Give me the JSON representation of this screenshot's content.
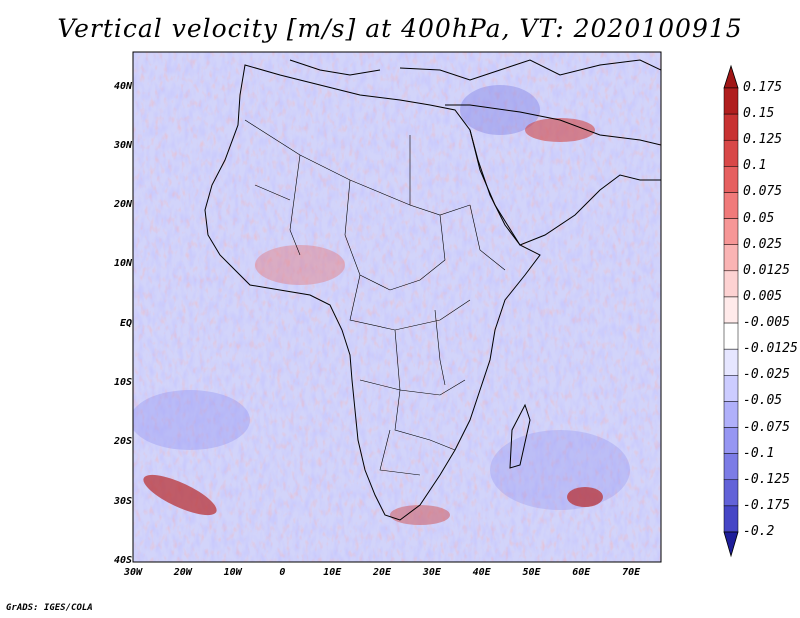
{
  "title": "Vertical velocity [m/s] at 400hPa, VT: 2020100915",
  "footer": "GrADS: IGES/COLA",
  "map": {
    "region": "Africa",
    "lon_range": [
      -30,
      76
    ],
    "lat_range": [
      -40,
      46
    ],
    "lat_ticks": [
      {
        "label": "40N"
      },
      {
        "label": "30N"
      },
      {
        "label": "20N"
      },
      {
        "label": "10N"
      },
      {
        "label": "EQ"
      },
      {
        "label": "10S"
      },
      {
        "label": "20S"
      },
      {
        "label": "30S"
      },
      {
        "label": "40S"
      }
    ],
    "lon_ticks": [
      {
        "label": "30W"
      },
      {
        "label": "20W"
      },
      {
        "label": "10W"
      },
      {
        "label": "0"
      },
      {
        "label": "10E"
      },
      {
        "label": "20E"
      },
      {
        "label": "30E"
      },
      {
        "label": "40E"
      },
      {
        "label": "50E"
      },
      {
        "label": "60E"
      },
      {
        "label": "70E"
      }
    ]
  },
  "colorbar": {
    "levels": [
      {
        "label": "0.175",
        "color": "#b01e1e"
      },
      {
        "label": "0.15",
        "color": "#c83232"
      },
      {
        "label": "0.125",
        "color": "#d84848"
      },
      {
        "label": "0.1",
        "color": "#e66060"
      },
      {
        "label": "0.075",
        "color": "#f07a7a"
      },
      {
        "label": "0.05",
        "color": "#f69696"
      },
      {
        "label": "0.025",
        "color": "#fab4b4"
      },
      {
        "label": "0.0125",
        "color": "#fdd2d2"
      },
      {
        "label": "0.005",
        "color": "#ffeaea"
      },
      {
        "label": "-0.005",
        "color": "#ffffff"
      },
      {
        "label": "-0.0125",
        "color": "#e6e6ff"
      },
      {
        "label": "-0.025",
        "color": "#ccccff"
      },
      {
        "label": "-0.05",
        "color": "#b0b0fa"
      },
      {
        "label": "-0.075",
        "color": "#9696f2"
      },
      {
        "label": "-0.1",
        "color": "#7c7ce6"
      },
      {
        "label": "-0.125",
        "color": "#6262d8"
      },
      {
        "label": "-0.175",
        "color": "#4646c6"
      },
      {
        "label": "-0.2",
        "color": "#2e2eaa"
      }
    ],
    "top_arrow_color": "#a01616",
    "bottom_arrow_color": "#1e1e9a"
  }
}
